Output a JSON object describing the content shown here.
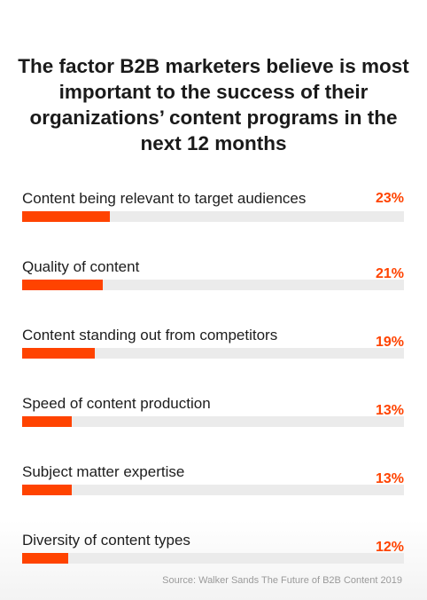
{
  "chart_data": {
    "type": "bar",
    "title": "The factor B2B marketers believe is most important to the success of their organizations’ content programs in the next 12 months",
    "categories": [
      "Content being relevant to target audiences",
      "Quality of content",
      "Content standing out from competitors",
      "Speed of content production",
      "Subject matter expertise",
      "Diversity of content types"
    ],
    "values": [
      23,
      21,
      19,
      13,
      13,
      12
    ],
    "value_labels": [
      "23%",
      "21%",
      "19%",
      "13%",
      "13%",
      "12%"
    ],
    "unit": "%",
    "xlim": [
      0,
      100
    ],
    "orientation": "horizontal",
    "grid": false,
    "legend": "none",
    "source": "Source: Walker Sands The Future of B2B Content 2019"
  },
  "colors": {
    "accent": "#ff4300",
    "value_text": "#ff4300",
    "track": "#ebebeb",
    "text": "#1d1d1d",
    "source_text": "#9a9a9a"
  }
}
